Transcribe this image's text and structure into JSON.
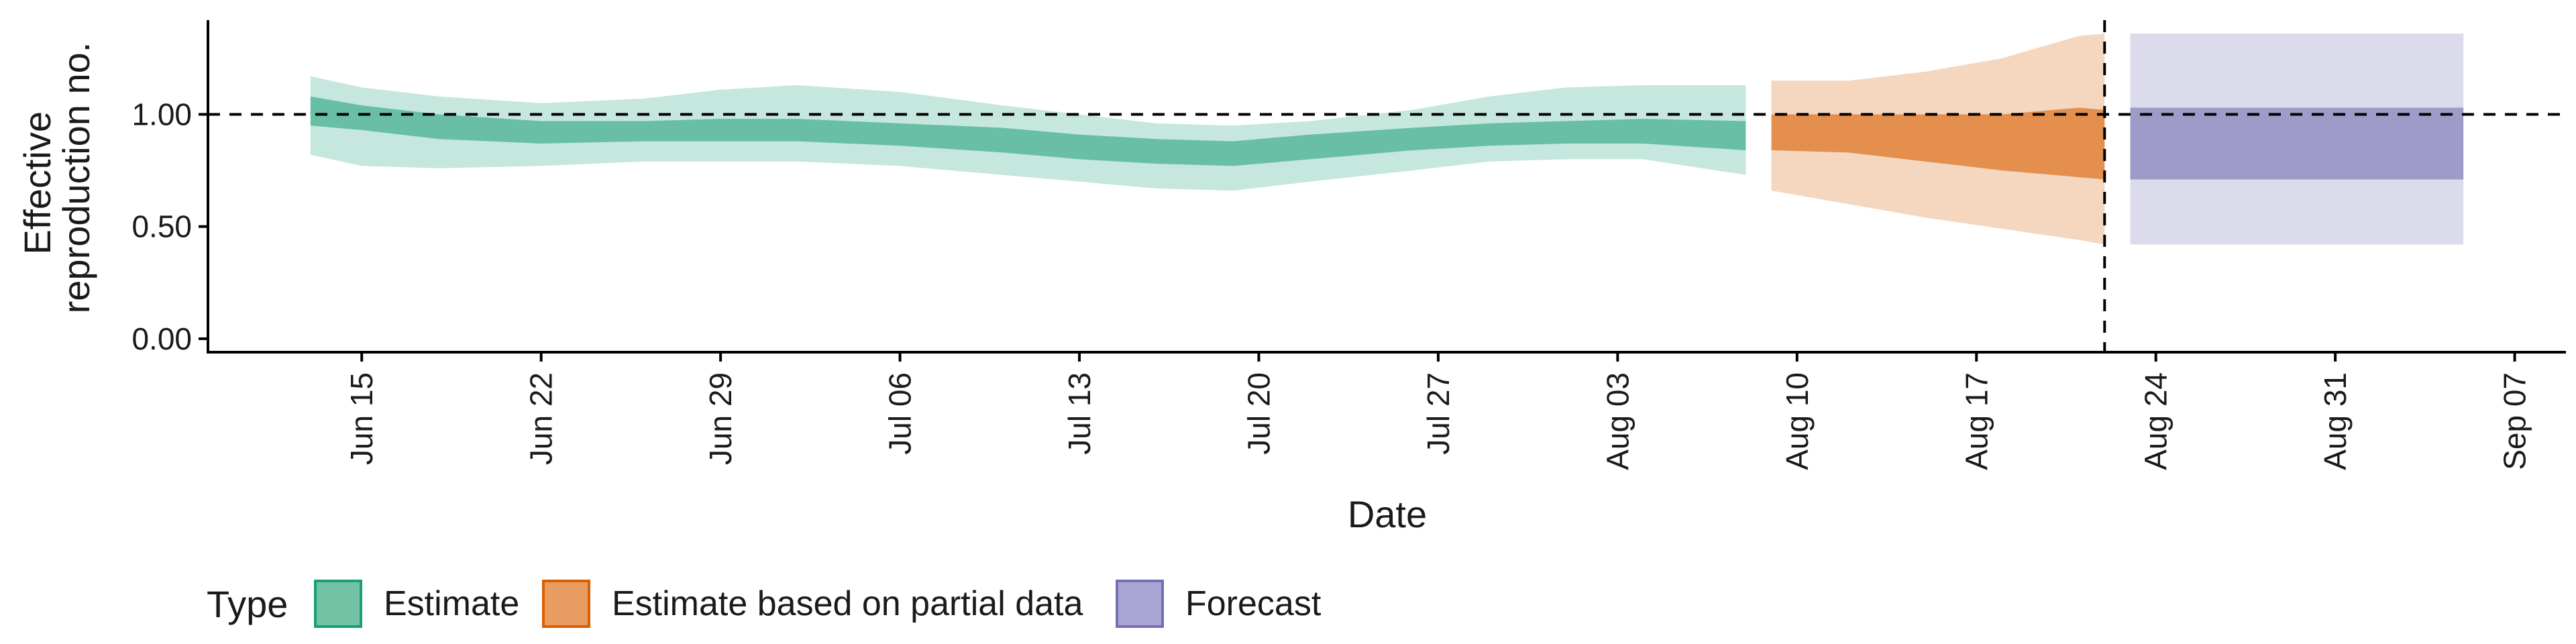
{
  "chart_data": {
    "type": "area",
    "xlabel": "Date",
    "ylabel_lines": [
      "Effective",
      "reproduction no."
    ],
    "x_range": [
      "2020-06-09",
      "2020-09-09"
    ],
    "ylim": [
      -0.06,
      1.42
    ],
    "grid": false,
    "reference_line_y": 1.0,
    "vertical_line_date": "2020-08-22",
    "y_ticks": [
      {
        "value": 0.0,
        "label": "0.00"
      },
      {
        "value": 0.5,
        "label": "0.50"
      },
      {
        "value": 1.0,
        "label": "1.00"
      }
    ],
    "x_ticks": [
      {
        "date": "2020-06-15",
        "label": "Jun 15"
      },
      {
        "date": "2020-06-22",
        "label": "Jun 22"
      },
      {
        "date": "2020-06-29",
        "label": "Jun 29"
      },
      {
        "date": "2020-07-06",
        "label": "Jul 06"
      },
      {
        "date": "2020-07-13",
        "label": "Jul 13"
      },
      {
        "date": "2020-07-20",
        "label": "Jul 20"
      },
      {
        "date": "2020-07-27",
        "label": "Jul 27"
      },
      {
        "date": "2020-08-03",
        "label": "Aug 03"
      },
      {
        "date": "2020-08-10",
        "label": "Aug 10"
      },
      {
        "date": "2020-08-17",
        "label": "Aug 17"
      },
      {
        "date": "2020-08-24",
        "label": "Aug 24"
      },
      {
        "date": "2020-08-31",
        "label": "Aug 31"
      },
      {
        "date": "2020-09-07",
        "label": "Sep 07"
      }
    ],
    "legend": {
      "title": "Type",
      "position": "bottom",
      "entries": [
        "Estimate",
        "Estimate based on partial data",
        "Forecast"
      ]
    },
    "colors": {
      "Estimate": {
        "fill": "#1b9e77",
        "outer_opacity": 0.25,
        "inner_opacity": 0.55
      },
      "Estimate based on partial data": {
        "fill": "#d95f02",
        "outer_opacity": 0.25,
        "inner_opacity": 0.6
      },
      "Forecast": {
        "fill": "#7570b3",
        "outer_opacity": 0.25,
        "inner_opacity": 0.6
      }
    },
    "series": [
      {
        "name": "Estimate",
        "points": [
          {
            "date": "2020-06-13",
            "lo90": 0.82,
            "lo50": 0.95,
            "hi50": 1.08,
            "hi90": 1.17
          },
          {
            "date": "2020-06-15",
            "lo90": 0.77,
            "lo50": 0.93,
            "hi50": 1.04,
            "hi90": 1.12
          },
          {
            "date": "2020-06-18",
            "lo90": 0.76,
            "lo50": 0.89,
            "hi50": 1.0,
            "hi90": 1.08
          },
          {
            "date": "2020-06-22",
            "lo90": 0.77,
            "lo50": 0.87,
            "hi50": 0.97,
            "hi90": 1.05
          },
          {
            "date": "2020-06-26",
            "lo90": 0.79,
            "lo50": 0.88,
            "hi50": 0.97,
            "hi90": 1.07
          },
          {
            "date": "2020-06-29",
            "lo90": 0.79,
            "lo50": 0.88,
            "hi50": 0.98,
            "hi90": 1.11
          },
          {
            "date": "2020-07-02",
            "lo90": 0.79,
            "lo50": 0.88,
            "hi50": 0.98,
            "hi90": 1.13
          },
          {
            "date": "2020-07-06",
            "lo90": 0.77,
            "lo50": 0.86,
            "hi50": 0.96,
            "hi90": 1.1
          },
          {
            "date": "2020-07-10",
            "lo90": 0.73,
            "lo50": 0.83,
            "hi50": 0.94,
            "hi90": 1.04
          },
          {
            "date": "2020-07-13",
            "lo90": 0.7,
            "lo50": 0.8,
            "hi50": 0.91,
            "hi90": 1.0
          },
          {
            "date": "2020-07-16",
            "lo90": 0.67,
            "lo50": 0.78,
            "hi50": 0.89,
            "hi90": 0.96
          },
          {
            "date": "2020-07-19",
            "lo90": 0.66,
            "lo50": 0.77,
            "hi50": 0.88,
            "hi90": 0.95
          },
          {
            "date": "2020-07-22",
            "lo90": 0.7,
            "lo50": 0.8,
            "hi50": 0.91,
            "hi90": 0.97
          },
          {
            "date": "2020-07-26",
            "lo90": 0.75,
            "lo50": 0.84,
            "hi50": 0.94,
            "hi90": 1.02
          },
          {
            "date": "2020-07-29",
            "lo90": 0.79,
            "lo50": 0.86,
            "hi50": 0.96,
            "hi90": 1.08
          },
          {
            "date": "2020-08-01",
            "lo90": 0.8,
            "lo50": 0.87,
            "hi50": 0.97,
            "hi90": 1.12
          },
          {
            "date": "2020-08-04",
            "lo90": 0.8,
            "lo50": 0.87,
            "hi50": 0.98,
            "hi90": 1.13
          },
          {
            "date": "2020-08-08",
            "lo90": 0.73,
            "lo50": 0.84,
            "hi50": 0.97,
            "hi90": 1.13
          }
        ]
      },
      {
        "name": "Estimate based on partial data",
        "points": [
          {
            "date": "2020-08-09",
            "lo90": 0.66,
            "lo50": 0.84,
            "hi50": 1.0,
            "hi90": 1.15
          },
          {
            "date": "2020-08-12",
            "lo90": 0.6,
            "lo50": 0.83,
            "hi50": 1.0,
            "hi90": 1.15
          },
          {
            "date": "2020-08-15",
            "lo90": 0.54,
            "lo50": 0.79,
            "hi50": 1.0,
            "hi90": 1.19
          },
          {
            "date": "2020-08-18",
            "lo90": 0.49,
            "lo50": 0.75,
            "hi50": 1.0,
            "hi90": 1.25
          },
          {
            "date": "2020-08-21",
            "lo90": 0.44,
            "lo50": 0.72,
            "hi50": 1.03,
            "hi90": 1.35
          },
          {
            "date": "2020-08-22",
            "lo90": 0.42,
            "lo50": 0.71,
            "hi50": 1.02,
            "hi90": 1.36
          }
        ]
      },
      {
        "name": "Forecast",
        "points": [
          {
            "date": "2020-08-23",
            "lo90": 0.42,
            "lo50": 0.71,
            "hi50": 1.03,
            "hi90": 1.36
          },
          {
            "date": "2020-09-05",
            "lo90": 0.42,
            "lo50": 0.71,
            "hi50": 1.03,
            "hi90": 1.36
          }
        ]
      }
    ]
  }
}
